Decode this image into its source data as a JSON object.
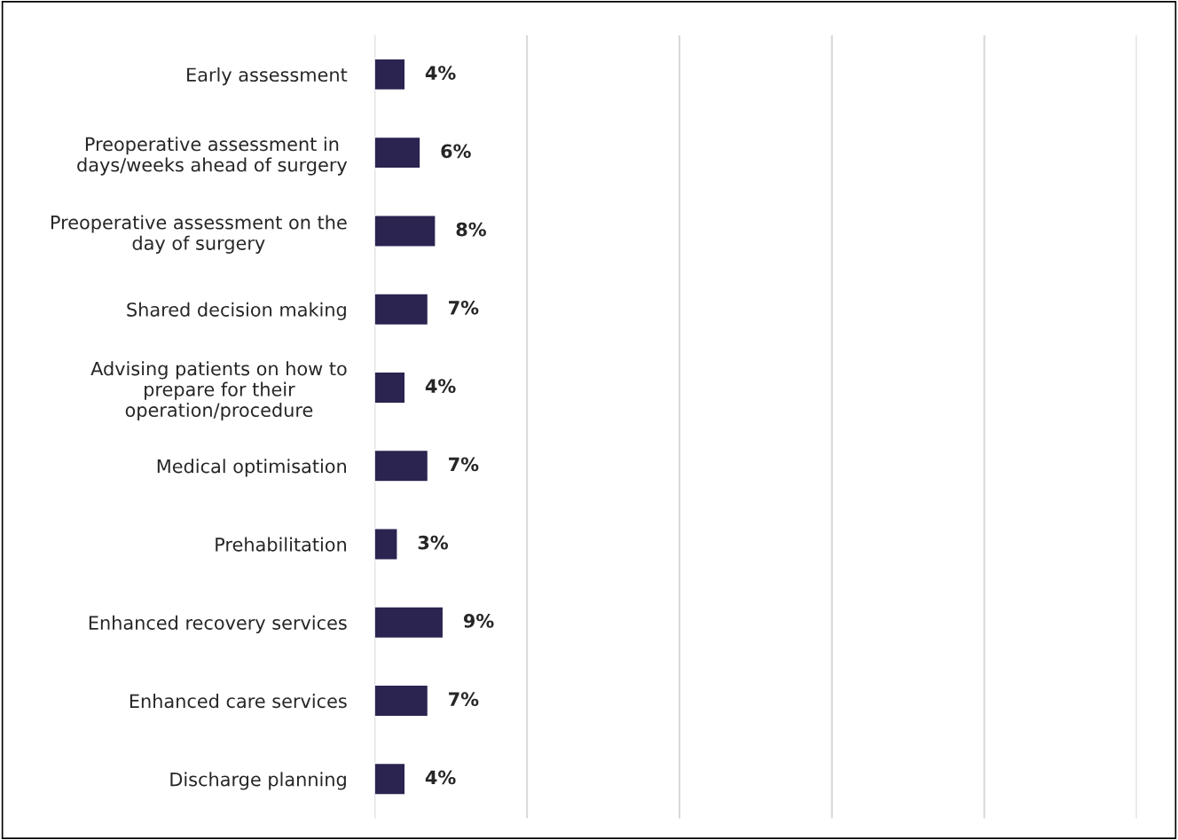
{
  "chart_data": {
    "type": "bar",
    "orientation": "horizontal",
    "categories": [
      "Early assessment",
      "Preoperative assessment in\ndays/weeks ahead of surgery",
      "Preoperative assessment on the\nday of surgery",
      "Shared decision making",
      "Advising patients on how to\nprepare for their\noperation/procedure",
      "Medical optimisation",
      "Prehabilitation",
      "Enhanced recovery services",
      "Enhanced care services",
      "Discharge planning"
    ],
    "values": [
      4,
      6,
      8,
      7,
      4,
      7,
      3,
      9,
      7,
      4
    ],
    "value_labels": [
      "4%",
      "6%",
      "8%",
      "7%",
      "4%",
      "7%",
      "3%",
      "9%",
      "7%",
      "4%"
    ],
    "color": "#2b2350",
    "xlim": [
      0,
      100
    ],
    "xticks": [
      {
        "value": 0,
        "label": null
      },
      {
        "value": 20,
        "label": null
      },
      {
        "value": 40,
        "label": null
      },
      {
        "value": 60,
        "label": null
      },
      {
        "value": 80,
        "label": null
      },
      {
        "value": 100,
        "label": null
      }
    ],
    "grid": "x",
    "tick_labels": "y",
    "legend": false
  }
}
